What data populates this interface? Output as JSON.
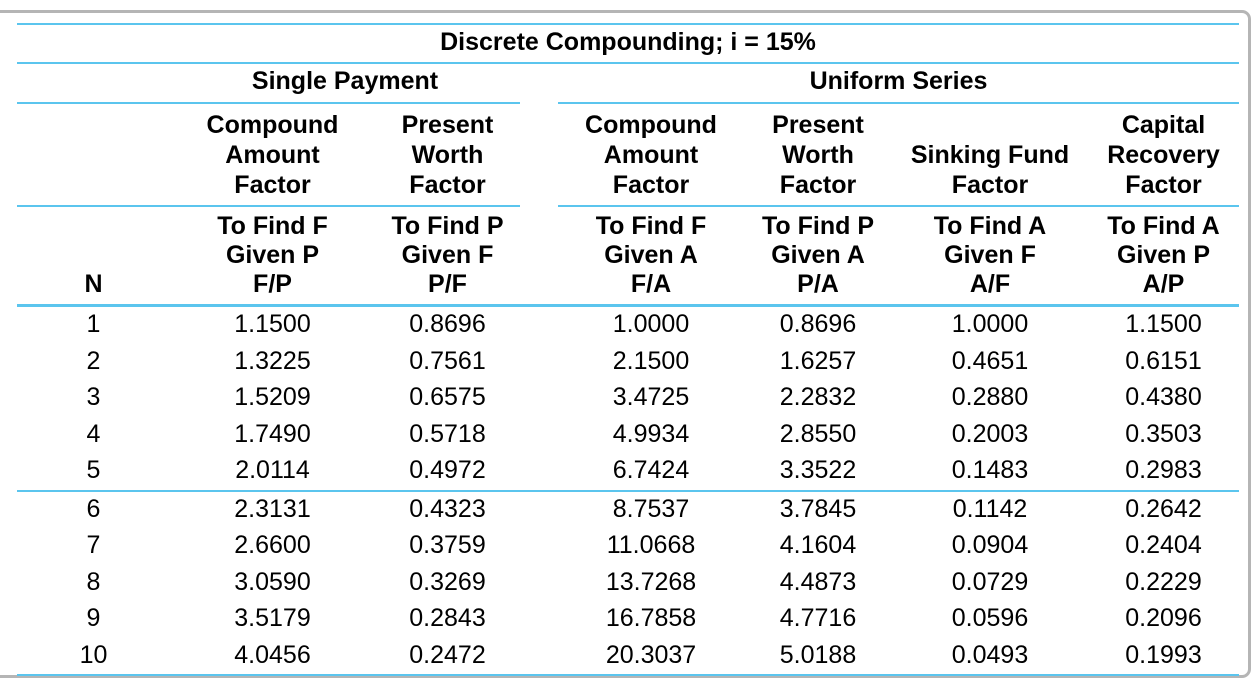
{
  "title": "Discrete Compounding; i = 15%",
  "groups": {
    "single_payment": "Single Payment",
    "uniform_series": "Uniform Series"
  },
  "columns": {
    "n_label": "N",
    "factor_names": [
      "Compound\nAmount\nFactor",
      "Present\nWorth Factor",
      "Compound\nAmount\nFactor",
      "Present\nWorth Factor",
      "Sinking Fund\nFactor",
      "Capital\nRecovery\nFactor"
    ],
    "find_labels": [
      "To Find F\nGiven P\nF/P",
      "To Find P\nGiven F\nP/F",
      "To Find F\nGiven A\nF/A",
      "To Find P\nGiven A\nP/A",
      "To Find A\nGiven F\nA/F",
      "To Find A\nGiven P\nA/P"
    ]
  },
  "table": {
    "rows": [
      {
        "n": "1",
        "values": [
          "1.1500",
          "0.8696",
          "1.0000",
          "0.8696",
          "1.0000",
          "1.1500"
        ]
      },
      {
        "n": "2",
        "values": [
          "1.3225",
          "0.7561",
          "2.1500",
          "1.6257",
          "0.4651",
          "0.6151"
        ]
      },
      {
        "n": "3",
        "values": [
          "1.5209",
          "0.6575",
          "3.4725",
          "2.2832",
          "0.2880",
          "0.4380"
        ]
      },
      {
        "n": "4",
        "values": [
          "1.7490",
          "0.5718",
          "4.9934",
          "2.8550",
          "0.2003",
          "0.3503"
        ]
      },
      {
        "n": "5",
        "values": [
          "2.0114",
          "0.4972",
          "6.7424",
          "3.3522",
          "0.1483",
          "0.2983"
        ]
      },
      {
        "n": "6",
        "values": [
          "2.3131",
          "0.4323",
          "8.7537",
          "3.7845",
          "0.1142",
          "0.2642"
        ]
      },
      {
        "n": "7",
        "values": [
          "2.6600",
          "0.3759",
          "11.0668",
          "4.1604",
          "0.0904",
          "0.2404"
        ]
      },
      {
        "n": "8",
        "values": [
          "3.0590",
          "0.3269",
          "13.7268",
          "4.4873",
          "0.0729",
          "0.2229"
        ]
      },
      {
        "n": "9",
        "values": [
          "3.5179",
          "0.2843",
          "16.7858",
          "4.7716",
          "0.0596",
          "0.2096"
        ]
      },
      {
        "n": "10",
        "values": [
          "4.0456",
          "0.2472",
          "20.3037",
          "5.0188",
          "0.0493",
          "0.1993"
        ]
      }
    ]
  },
  "colors": {
    "rule_blue": "#5bc5ee",
    "frame_gray": "#b5b5b5",
    "text": "#000000"
  }
}
